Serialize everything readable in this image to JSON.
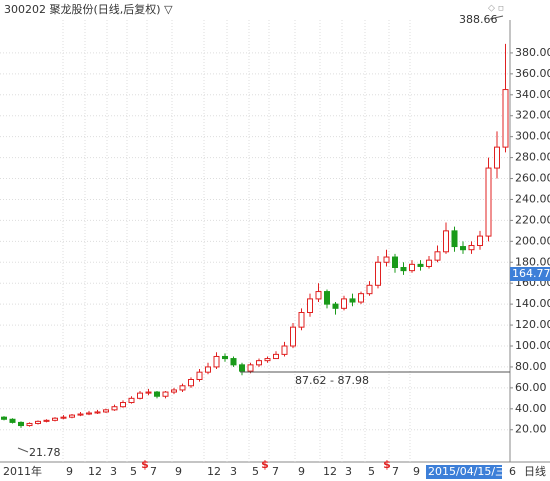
{
  "chart_data": {
    "type": "candlestick",
    "title": "300202 聚龙股份(日线,后复权) ▽",
    "open": [
      32,
      30,
      27,
      24,
      26,
      28,
      29,
      31,
      32,
      34,
      35,
      36,
      37,
      39,
      42,
      46,
      50,
      55,
      56,
      52,
      56,
      58,
      62,
      68,
      75,
      80,
      90,
      88,
      82,
      76,
      82,
      86,
      88,
      92,
      100,
      118,
      132,
      145,
      152,
      140,
      136,
      145,
      142,
      150,
      158,
      180,
      185,
      175,
      172,
      178,
      176,
      182,
      190,
      210,
      195,
      192,
      196,
      205,
      270,
      290
    ],
    "high": [
      33,
      31,
      28,
      27,
      29,
      30,
      32,
      34,
      35,
      37,
      38,
      39,
      40,
      44,
      48,
      52,
      57,
      59,
      57,
      57,
      60,
      64,
      70,
      78,
      84,
      94,
      93,
      90,
      84,
      84,
      88,
      90,
      95,
      104,
      122,
      136,
      150,
      160,
      154,
      142,
      148,
      150,
      152,
      162,
      186,
      192,
      188,
      180,
      182,
      182,
      186,
      196,
      218,
      214,
      200,
      200,
      210,
      280,
      305,
      388.66
    ],
    "low": [
      29,
      26,
      21.78,
      23,
      25,
      27,
      28,
      30,
      31,
      33,
      34,
      35,
      36,
      38,
      41,
      45,
      49,
      53,
      50,
      50,
      54,
      56,
      60,
      66,
      73,
      78,
      85,
      80,
      72,
      74,
      80,
      84,
      87.62,
      90,
      98,
      115,
      128,
      142,
      136,
      130,
      134,
      138,
      140,
      148,
      155,
      176,
      170,
      168,
      170,
      172,
      174,
      180,
      188,
      190,
      188,
      188,
      192,
      200,
      260,
      285
    ],
    "close": [
      30,
      27,
      24,
      26,
      28,
      29,
      31,
      32,
      34,
      35,
      36,
      37,
      39,
      42,
      46,
      50,
      55,
      56,
      52,
      56,
      58,
      62,
      68,
      75,
      80,
      90,
      88,
      82,
      76,
      82,
      86,
      88,
      92,
      100,
      118,
      132,
      145,
      152,
      140,
      136,
      145,
      142,
      150,
      158,
      180,
      185,
      175,
      172,
      178,
      176,
      182,
      190,
      210,
      195,
      192,
      196,
      205,
      270,
      290,
      345
    ],
    "up_color": "#e02020",
    "down_color": "#1a9a1a",
    "ylim": [
      -7,
      421
    ],
    "yticks": [
      {
        "value": 20,
        "label": "20.00"
      },
      {
        "value": 40,
        "label": "40.00"
      },
      {
        "value": 60,
        "label": "60.00"
      },
      {
        "value": 80,
        "label": "80.00"
      },
      {
        "value": 100,
        "label": "100.00"
      },
      {
        "value": 120,
        "label": "120.00"
      },
      {
        "value": 140,
        "label": "140.00"
      },
      {
        "value": 160,
        "label": "160.00"
      },
      {
        "value": 180,
        "label": "180.00"
      },
      {
        "value": 200,
        "label": "200.00"
      },
      {
        "value": 220,
        "label": "220.00"
      },
      {
        "value": 240,
        "label": "240.00"
      },
      {
        "value": 260,
        "label": "260.00"
      },
      {
        "value": 280,
        "label": "280.00"
      },
      {
        "value": 300,
        "label": "300.00"
      },
      {
        "value": 320,
        "label": "320.00"
      },
      {
        "value": 340,
        "label": "340.00"
      },
      {
        "value": 360,
        "label": "360.00"
      },
      {
        "value": 380,
        "label": "380.00"
      }
    ],
    "grid": true,
    "x_labels": [
      "2011年",
      "9",
      "12",
      "3",
      "5",
      "7",
      "9",
      "12",
      "3",
      "5",
      "7",
      "9",
      "12",
      "3",
      "5",
      "7",
      "9",
      "2015/04/15/三",
      "6",
      "日线"
    ],
    "dividend_markers": [
      "$",
      "$",
      "$"
    ],
    "annotations": {
      "max": "388.66",
      "min": "21.78",
      "range": "87.62 - 87.98",
      "cursor": "164.77"
    }
  }
}
